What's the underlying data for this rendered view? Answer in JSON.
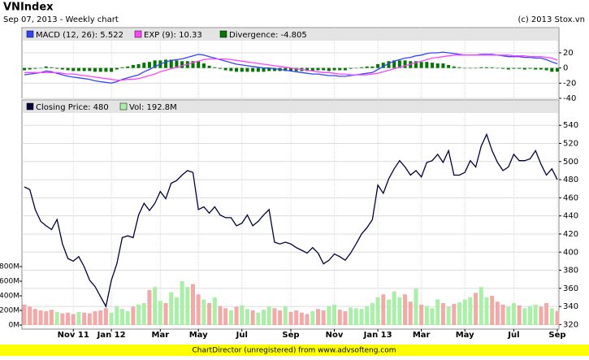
{
  "title": "VNIndex",
  "subtitle": "Sep 07, 2013 - Weekly chart",
  "copyright": "(c) 2013 Stox.vn",
  "footer": "ChartDirector (unregistered) from www.advsofteng.com",
  "chart_data": [
    {
      "type": "line",
      "ylim": [
        -40,
        50
      ],
      "yticks": [
        -40,
        -20,
        0,
        20
      ],
      "grid": true,
      "series": [
        {
          "name": "MACD (12, 26): 5.522",
          "color": "#3344ff",
          "values": [
            -9,
            -8,
            -7,
            -6,
            -4,
            -5,
            -7,
            -9,
            -11,
            -12,
            -13,
            -14,
            -15,
            -17,
            -18,
            -19,
            -20,
            -18,
            -15,
            -13,
            -11,
            -9,
            -5,
            -2,
            2,
            5,
            8,
            10,
            11,
            12,
            14,
            16,
            18,
            17,
            15,
            13,
            11,
            9,
            7,
            5,
            4,
            3,
            2,
            1,
            0,
            0,
            -1,
            -2,
            -3,
            -4,
            -5,
            -6,
            -7,
            -8,
            -8,
            -9,
            -10,
            -10,
            -11,
            -11,
            -10,
            -9,
            -8,
            -7,
            -6,
            -2,
            2,
            6,
            9,
            11,
            13,
            14,
            16,
            17,
            19,
            20,
            20,
            21,
            20,
            19,
            18,
            17,
            17,
            17,
            18,
            18,
            18,
            17,
            16,
            15,
            15,
            15,
            14,
            14,
            13,
            13,
            11,
            8,
            5.522
          ]
        },
        {
          "name": "EXP (9): 10.33",
          "color": "#ff44ff",
          "values": [
            -6,
            -6,
            -6,
            -6,
            -6,
            -6,
            -6,
            -7,
            -8,
            -8,
            -9,
            -10,
            -11,
            -12,
            -13,
            -14,
            -15,
            -16,
            -16,
            -15,
            -15,
            -14,
            -12,
            -10,
            -8,
            -5,
            -3,
            -1,
            1,
            3,
            5,
            7,
            9,
            11,
            12,
            12,
            12,
            12,
            11,
            10,
            9,
            8,
            7,
            6,
            5,
            4,
            3,
            2,
            1,
            0,
            -1,
            -2,
            -3,
            -4,
            -5,
            -6,
            -6,
            -7,
            -8,
            -8,
            -9,
            -9,
            -9,
            -9,
            -8,
            -7,
            -5,
            -3,
            -1,
            1,
            3,
            5,
            7,
            9,
            11,
            13,
            14,
            15,
            16,
            17,
            17,
            17,
            17,
            17,
            17,
            17,
            17,
            17,
            17,
            17,
            16,
            16,
            16,
            15,
            15,
            15,
            14,
            13,
            10.33
          ]
        },
        {
          "name": "Divergence: -4.805",
          "color": "#007700",
          "type": "bar",
          "values": [
            -3,
            -2,
            -1,
            0,
            2,
            1,
            -1,
            -2,
            -3,
            -4,
            -4,
            -4,
            -4,
            -5,
            -5,
            -5,
            -5,
            -2,
            1,
            2,
            4,
            5,
            7,
            8,
            10,
            10,
            11,
            11,
            10,
            9,
            9,
            9,
            9,
            6,
            3,
            1,
            -1,
            -3,
            -4,
            -5,
            -5,
            -5,
            -5,
            -5,
            -5,
            -4,
            -4,
            -4,
            -4,
            -4,
            -4,
            -4,
            -4,
            -4,
            -3,
            -3,
            -4,
            -3,
            -3,
            -3,
            -1,
            0,
            1,
            2,
            2,
            5,
            7,
            9,
            10,
            10,
            10,
            9,
            9,
            8,
            8,
            7,
            6,
            6,
            4,
            2,
            1,
            0,
            0,
            0,
            1,
            1,
            1,
            0,
            -1,
            -2,
            -1,
            -1,
            -2,
            -1,
            -2,
            -2,
            -3,
            -5,
            -4.805
          ]
        }
      ]
    },
    {
      "type": "line",
      "ylim": [
        315,
        568
      ],
      "yticks": [
        320,
        340,
        360,
        380,
        400,
        420,
        440,
        460,
        480,
        500,
        520,
        540
      ],
      "grid": true,
      "y2lim": [
        0,
        3080
      ],
      "y2ticks": [
        {
          "value": 0,
          "label": "0M"
        },
        {
          "value": 200,
          "label": "200M"
        },
        {
          "value": 400,
          "label": "400M"
        },
        {
          "value": 600,
          "label": "600M"
        },
        {
          "value": 800,
          "label": "800M"
        }
      ],
      "categories": [
        null,
        null,
        null,
        null,
        null,
        null,
        null,
        null,
        null,
        "Nov 11",
        null,
        null,
        null,
        null,
        null,
        null,
        "Jan 12",
        null,
        null,
        null,
        null,
        null,
        null,
        null,
        null,
        "Mar",
        null,
        null,
        null,
        null,
        null,
        null,
        "May",
        null,
        null,
        null,
        null,
        null,
        null,
        null,
        "Jul",
        null,
        null,
        null,
        null,
        null,
        null,
        null,
        null,
        "Sep",
        null,
        null,
        null,
        null,
        null,
        null,
        null,
        "Nov",
        null,
        null,
        null,
        null,
        null,
        null,
        null,
        "Jan 13",
        null,
        null,
        null,
        null,
        null,
        null,
        null,
        "Mar",
        null,
        null,
        null,
        null,
        null,
        null,
        null,
        "May",
        null,
        null,
        null,
        null,
        null,
        null,
        null,
        null,
        "Jul",
        null,
        null,
        null,
        null,
        null,
        null,
        null,
        "Sep"
      ],
      "series": [
        {
          "name": "Closing Price: 480",
          "color": "#000040",
          "values": [
            472,
            469,
            447,
            434,
            429,
            425,
            436,
            409,
            393,
            390,
            395,
            384,
            369,
            362,
            351,
            340,
            369,
            387,
            416,
            418,
            416,
            441,
            454,
            446,
            454,
            467,
            459,
            476,
            479,
            485,
            490,
            488,
            447,
            450,
            443,
            450,
            441,
            438,
            438,
            429,
            432,
            441,
            429,
            434,
            441,
            447,
            411,
            409,
            411,
            409,
            405,
            402,
            399,
            405,
            399,
            387,
            391,
            398,
            395,
            391,
            399,
            409,
            420,
            427,
            436,
            474,
            465,
            481,
            492,
            501,
            494,
            485,
            490,
            483,
            499,
            501,
            508,
            499,
            512,
            485,
            485,
            488,
            501,
            494,
            517,
            530,
            512,
            499,
            490,
            494,
            508,
            501,
            501,
            503,
            512,
            497,
            485,
            492,
            480
          ]
        },
        {
          "name": "Vol: 192.8M",
          "color": "#a8f0a8",
          "down_color": "#f4a8a8",
          "type": "bar",
          "axis": "y2",
          "values": [
            280,
            250,
            220,
            200,
            190,
            210,
            180,
            160,
            170,
            150,
            180,
            170,
            160,
            190,
            200,
            230,
            170,
            260,
            220,
            190,
            250,
            280,
            300,
            480,
            520,
            330,
            300,
            450,
            380,
            600,
            520,
            560,
            420,
            350,
            300,
            380,
            260,
            230,
            200,
            250,
            270,
            220,
            200,
            170,
            210,
            250,
            230,
            200,
            260,
            180,
            200,
            170,
            150,
            190,
            220,
            200,
            260,
            280,
            210,
            190,
            240,
            230,
            220,
            260,
            300,
            380,
            420,
            350,
            460,
            380,
            420,
            320,
            500,
            280,
            260,
            230,
            350,
            300,
            250,
            290,
            310,
            350,
            380,
            440,
            520,
            380,
            400,
            320,
            280,
            250,
            300,
            270,
            230,
            260,
            280,
            250,
            300,
            230,
            192.8
          ]
        }
      ]
    }
  ]
}
